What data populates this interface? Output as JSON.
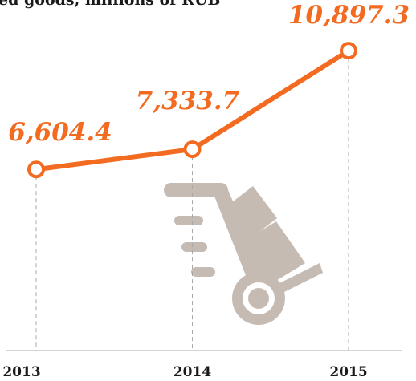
{
  "chart_data": {
    "type": "line",
    "title": "ed goods, millions of RUB",
    "categories": [
      "2013",
      "2014",
      "2015"
    ],
    "series": [
      {
        "name": null,
        "color": "#f26b21",
        "values": [
          6604.4,
          7333.7,
          10897.3
        ],
        "value_labels": [
          "6,604.4",
          "7,333.7",
          "10,897.3"
        ]
      }
    ],
    "ylim": [
      0,
      12700
    ]
  }
}
